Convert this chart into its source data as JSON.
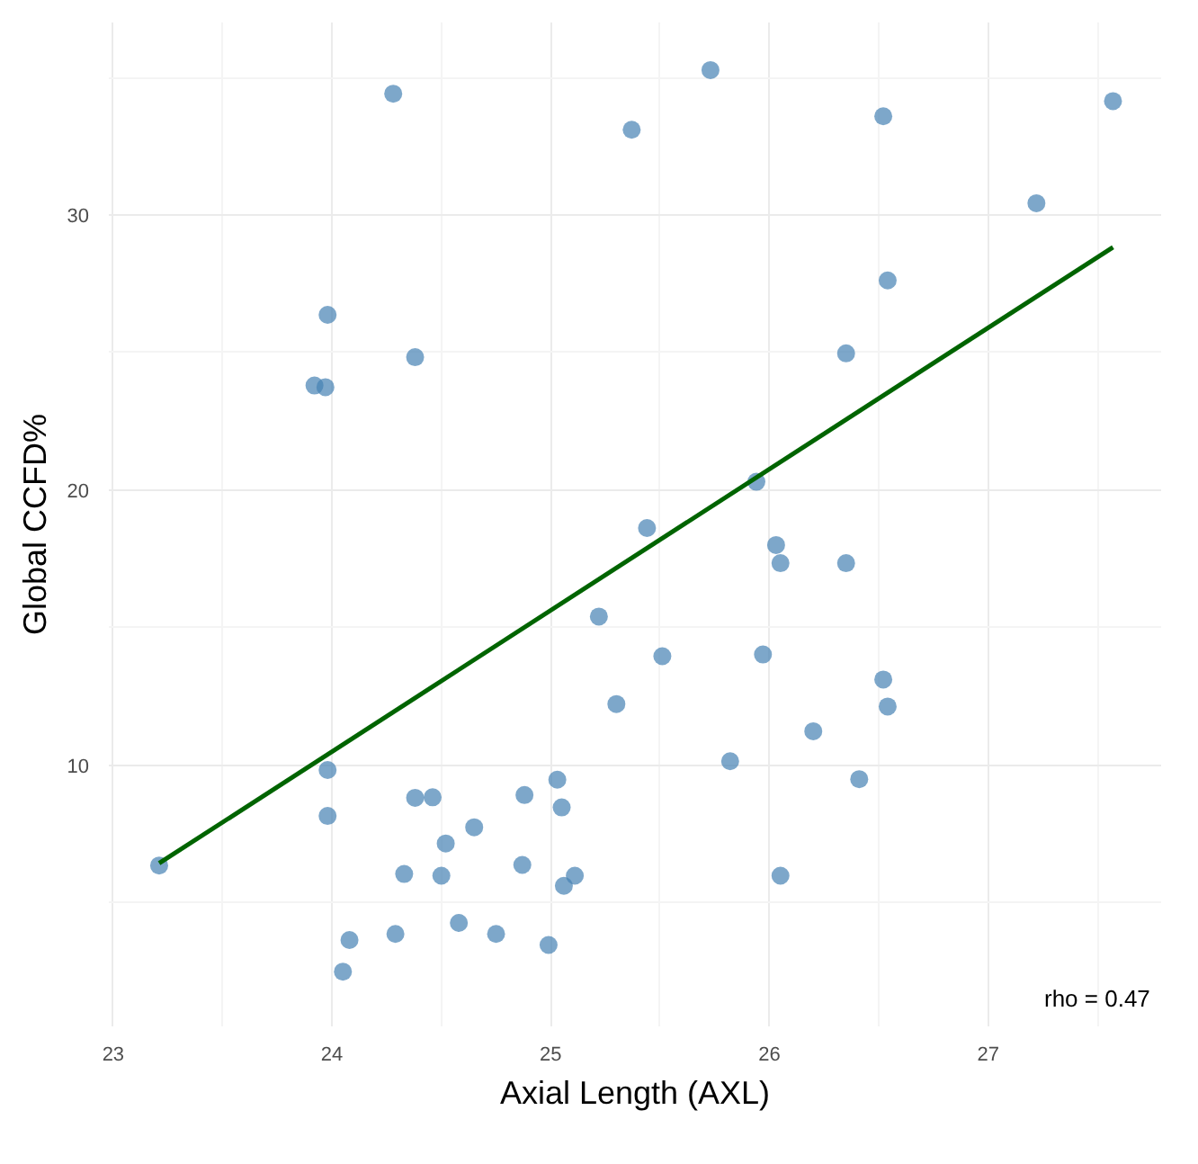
{
  "chart_data": {
    "type": "scatter",
    "xlabel": "Axial Length (AXL)",
    "ylabel": "Global CCFD%",
    "xlim": [
      22.98,
      27.79
    ],
    "ylim": [
      0.5,
      37
    ],
    "xticks": [
      23,
      24,
      25,
      26,
      27
    ],
    "yticks": [
      10,
      20,
      30
    ],
    "grid": true,
    "annotations": [
      "rho = 0.47"
    ],
    "series": [
      {
        "color": "#4682b4",
        "marker": "circle",
        "x": [
          24.28,
          23.98,
          24.38,
          23.92,
          23.97,
          25.37,
          25.73,
          26.52,
          27.57,
          27.22,
          26.54,
          26.35,
          25.94,
          25.44,
          26.03,
          26.05,
          26.35,
          25.22,
          25.51,
          25.97,
          26.52,
          26.54,
          25.3,
          26.2,
          25.82,
          26.41,
          26.05,
          23.21,
          23.98,
          23.98,
          24.38,
          24.46,
          24.88,
          25.03,
          25.05,
          24.65,
          24.52,
          24.33,
          24.5,
          24.87,
          25.06,
          25.11,
          24.58,
          24.29,
          24.75,
          24.08,
          24.99,
          24.05
        ],
        "values": [
          34.41,
          26.37,
          24.83,
          23.8,
          23.74,
          33.1,
          35.27,
          33.59,
          34.14,
          30.43,
          27.62,
          24.97,
          20.3,
          18.62,
          18.0,
          17.34,
          17.34,
          15.4,
          13.96,
          14.02,
          13.11,
          12.13,
          12.22,
          11.23,
          10.14,
          9.49,
          5.98,
          6.35,
          9.82,
          8.15,
          8.81,
          8.83,
          8.91,
          9.47,
          8.46,
          7.74,
          7.15,
          6.04,
          5.98,
          6.37,
          5.61,
          5.98,
          4.26,
          3.86,
          3.86,
          3.64,
          3.46,
          2.49
        ]
      },
      {
        "type": "line",
        "color": "#006400",
        "x": [
          23.21,
          27.57
        ],
        "values": [
          6.43,
          28.83
        ]
      }
    ]
  }
}
